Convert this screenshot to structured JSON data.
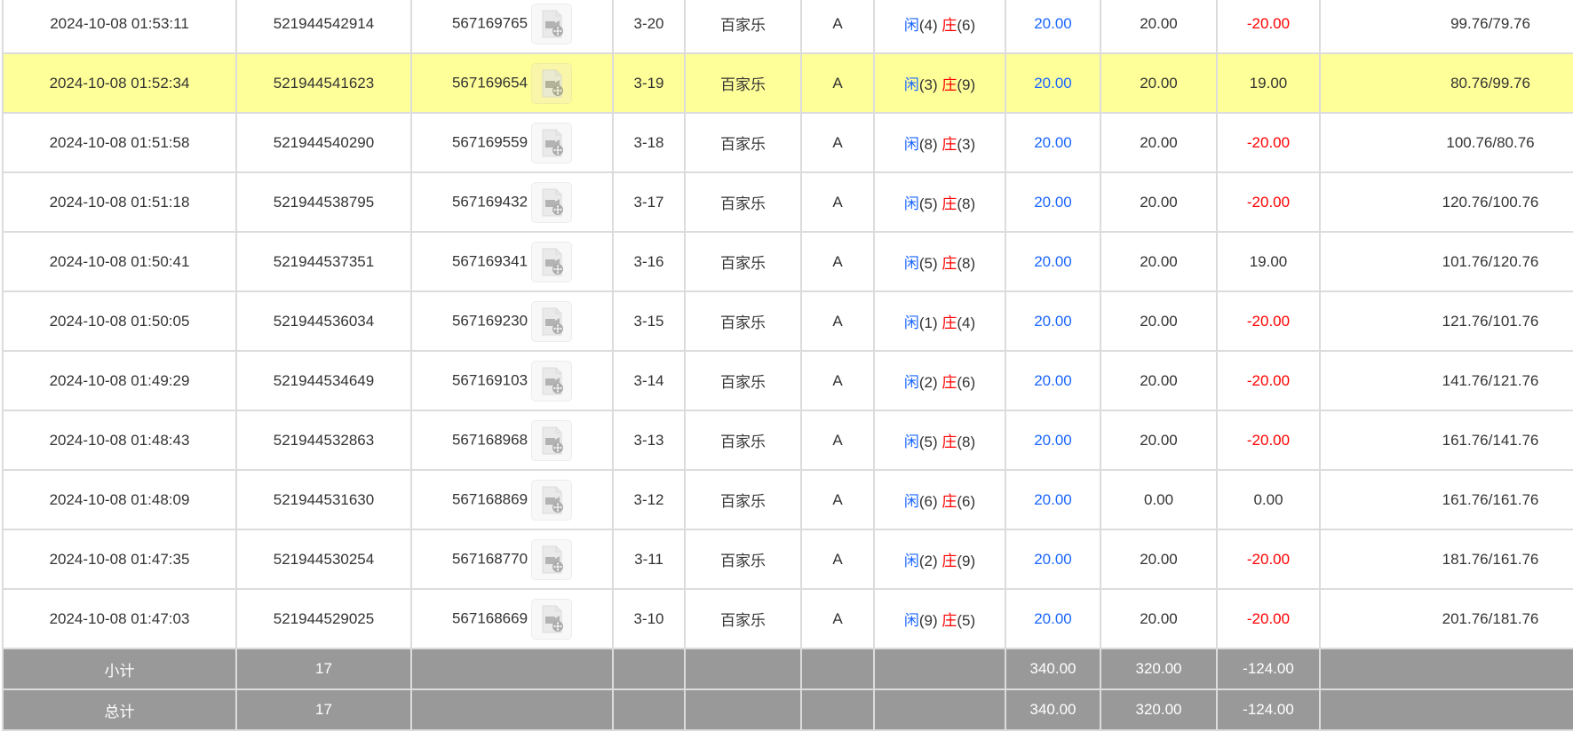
{
  "colors": {
    "highlight": "#ffff99",
    "blue": "#1a66ff",
    "red": "#ff0000",
    "summary_bg": "#999999"
  },
  "rows": [
    {
      "time": "2024-10-08 01:53:11",
      "bet_id": "521944542914",
      "game_id": "567169765",
      "round": "3-20",
      "game": "百家乐",
      "table": "A",
      "player_label": "闲",
      "player": "(4)",
      "banker_label": "庄",
      "banker": "(6)",
      "bet": "20.00",
      "valid": "20.00",
      "win": "-20.00",
      "balance": "99.76/79.76",
      "win_neg": true
    },
    {
      "time": "2024-10-08 01:52:34",
      "bet_id": "521944541623",
      "game_id": "567169654",
      "round": "3-19",
      "game": "百家乐",
      "table": "A",
      "player_label": "闲",
      "player": "(3)",
      "banker_label": "庄",
      "banker": "(9)",
      "bet": "20.00",
      "valid": "20.00",
      "win": "19.00",
      "balance": "80.76/99.76",
      "win_neg": false,
      "highlight": true
    },
    {
      "time": "2024-10-08 01:51:58",
      "bet_id": "521944540290",
      "game_id": "567169559",
      "round": "3-18",
      "game": "百家乐",
      "table": "A",
      "player_label": "闲",
      "player": "(8)",
      "banker_label": "庄",
      "banker": "(3)",
      "bet": "20.00",
      "valid": "20.00",
      "win": "-20.00",
      "balance": "100.76/80.76",
      "win_neg": true
    },
    {
      "time": "2024-10-08 01:51:18",
      "bet_id": "521944538795",
      "game_id": "567169432",
      "round": "3-17",
      "game": "百家乐",
      "table": "A",
      "player_label": "闲",
      "player": "(5)",
      "banker_label": "庄",
      "banker": "(8)",
      "bet": "20.00",
      "valid": "20.00",
      "win": "-20.00",
      "balance": "120.76/100.76",
      "win_neg": true
    },
    {
      "time": "2024-10-08 01:50:41",
      "bet_id": "521944537351",
      "game_id": "567169341",
      "round": "3-16",
      "game": "百家乐",
      "table": "A",
      "player_label": "闲",
      "player": "(5)",
      "banker_label": "庄",
      "banker": "(8)",
      "bet": "20.00",
      "valid": "20.00",
      "win": "19.00",
      "balance": "101.76/120.76",
      "win_neg": false
    },
    {
      "time": "2024-10-08 01:50:05",
      "bet_id": "521944536034",
      "game_id": "567169230",
      "round": "3-15",
      "game": "百家乐",
      "table": "A",
      "player_label": "闲",
      "player": "(1)",
      "banker_label": "庄",
      "banker": "(4)",
      "bet": "20.00",
      "valid": "20.00",
      "win": "-20.00",
      "balance": "121.76/101.76",
      "win_neg": true
    },
    {
      "time": "2024-10-08 01:49:29",
      "bet_id": "521944534649",
      "game_id": "567169103",
      "round": "3-14",
      "game": "百家乐",
      "table": "A",
      "player_label": "闲",
      "player": "(2)",
      "banker_label": "庄",
      "banker": "(6)",
      "bet": "20.00",
      "valid": "20.00",
      "win": "-20.00",
      "balance": "141.76/121.76",
      "win_neg": true
    },
    {
      "time": "2024-10-08 01:48:43",
      "bet_id": "521944532863",
      "game_id": "567168968",
      "round": "3-13",
      "game": "百家乐",
      "table": "A",
      "player_label": "闲",
      "player": "(5)",
      "banker_label": "庄",
      "banker": "(8)",
      "bet": "20.00",
      "valid": "20.00",
      "win": "-20.00",
      "balance": "161.76/141.76",
      "win_neg": true
    },
    {
      "time": "2024-10-08 01:48:09",
      "bet_id": "521944531630",
      "game_id": "567168869",
      "round": "3-12",
      "game": "百家乐",
      "table": "A",
      "player_label": "闲",
      "player": "(6)",
      "banker_label": "庄",
      "banker": "(6)",
      "bet": "20.00",
      "valid": "0.00",
      "win": "0.00",
      "balance": "161.76/161.76",
      "win_neg": false
    },
    {
      "time": "2024-10-08 01:47:35",
      "bet_id": "521944530254",
      "game_id": "567168770",
      "round": "3-11",
      "game": "百家乐",
      "table": "A",
      "player_label": "闲",
      "player": "(2)",
      "banker_label": "庄",
      "banker": "(9)",
      "bet": "20.00",
      "valid": "20.00",
      "win": "-20.00",
      "balance": "181.76/161.76",
      "win_neg": true
    },
    {
      "time": "2024-10-08 01:47:03",
      "bet_id": "521944529025",
      "game_id": "567168669",
      "round": "3-10",
      "game": "百家乐",
      "table": "A",
      "player_label": "闲",
      "player": "(9)",
      "banker_label": "庄",
      "banker": "(5)",
      "bet": "20.00",
      "valid": "20.00",
      "win": "-20.00",
      "balance": "201.76/181.76",
      "win_neg": true
    }
  ],
  "summary": [
    {
      "label": "小计",
      "count": "17",
      "bet": "340.00",
      "valid": "320.00",
      "win": "-124.00"
    },
    {
      "label": "总计",
      "count": "17",
      "bet": "340.00",
      "valid": "320.00",
      "win": "-124.00"
    }
  ],
  "icons": {
    "replay": "video-file-icon"
  }
}
